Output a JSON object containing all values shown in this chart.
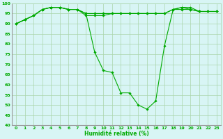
{
  "title": "",
  "xlabel": "Humidité relative (%)",
  "ylabel": "",
  "bg_color": "#d8f5f5",
  "grid_color": "#aad4aa",
  "line_color": "#00aa00",
  "marker_color": "#00aa00",
  "xlim": [
    -0.5,
    23.5
  ],
  "ylim": [
    40,
    100
  ],
  "yticks": [
    40,
    45,
    50,
    55,
    60,
    65,
    70,
    75,
    80,
    85,
    90,
    95,
    100
  ],
  "xticks": [
    0,
    1,
    2,
    3,
    4,
    5,
    6,
    7,
    8,
    9,
    10,
    11,
    12,
    13,
    14,
    15,
    16,
    17,
    18,
    19,
    20,
    21,
    22,
    23
  ],
  "series1": {
    "x": [
      0,
      1,
      2,
      3,
      4,
      5,
      6,
      7,
      8,
      9,
      10,
      11,
      12,
      13,
      14,
      15,
      16,
      17,
      18,
      19,
      20,
      21,
      22,
      23
    ],
    "y": [
      90,
      92,
      94,
      97,
      98,
      98,
      97,
      97,
      95,
      76,
      67,
      66,
      56,
      56,
      50,
      48,
      52,
      79,
      97,
      98,
      98,
      96,
      96,
      96
    ]
  },
  "series2": {
    "x": [
      0,
      1,
      2,
      3,
      4,
      5,
      6,
      7,
      8,
      9,
      10,
      11,
      12,
      13,
      14,
      15,
      16,
      17,
      18,
      19,
      20,
      21,
      22,
      23
    ],
    "y": [
      90,
      92,
      94,
      97,
      98,
      98,
      97,
      97,
      95,
      95,
      95,
      95,
      95,
      95,
      95,
      95,
      95,
      95,
      97,
      98,
      97,
      96,
      96,
      96
    ]
  },
  "series3": {
    "x": [
      0,
      1,
      2,
      3,
      4,
      5,
      6,
      7,
      8,
      9,
      10,
      11,
      12,
      13,
      14,
      15,
      16,
      17,
      18,
      19,
      20,
      21,
      22,
      23
    ],
    "y": [
      90,
      92,
      94,
      97,
      98,
      98,
      97,
      97,
      94,
      94,
      94,
      95,
      95,
      95,
      95,
      95,
      95,
      95,
      97,
      97,
      97,
      96,
      96,
      96
    ]
  }
}
